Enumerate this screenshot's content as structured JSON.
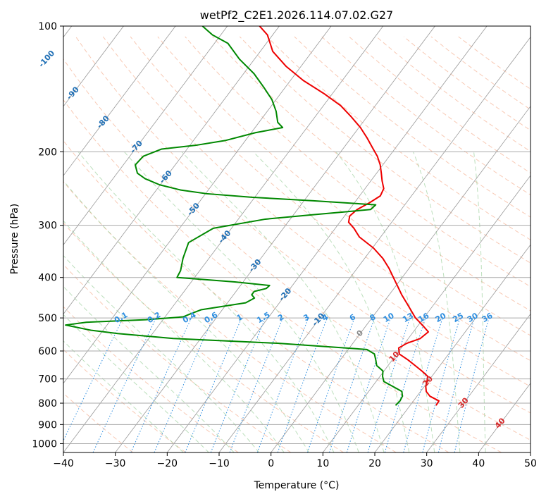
{
  "chart_data": {
    "type": "skew-t",
    "title": "wetPf2_C2E1.2026.114.07.02.G27",
    "xlabel": "Temperature (°C)",
    "ylabel": "Pressure (hPa)",
    "xlim": [
      -40,
      50
    ],
    "ylim": [
      1050,
      100
    ],
    "x_ticks": [
      -40,
      -30,
      -20,
      -10,
      0,
      10,
      20,
      30,
      40,
      50
    ],
    "x_tick_labels": [
      "−40",
      "−30",
      "−20",
      "−10",
      "0",
      "10",
      "20",
      "30",
      "40",
      "50"
    ],
    "y_ticks": [
      100,
      200,
      300,
      400,
      500,
      600,
      700,
      800,
      900,
      1000
    ],
    "y_tick_labels": [
      "100",
      "200",
      "300",
      "400",
      "500",
      "600",
      "700",
      "800",
      "900",
      "1000"
    ],
    "isotherm_labels": [
      {
        "text": "-100",
        "p": 120
      },
      {
        "text": "-90",
        "p": 145
      },
      {
        "text": "-80",
        "p": 170
      },
      {
        "text": "-70",
        "p": 195
      },
      {
        "text": "-60",
        "p": 230
      },
      {
        "text": "-50",
        "p": 275
      },
      {
        "text": "-40",
        "p": 320
      },
      {
        "text": "-30",
        "p": 375
      },
      {
        "text": "-20",
        "p": 440
      },
      {
        "text": "-10",
        "p": 505
      },
      {
        "text": "0",
        "p": 545
      },
      {
        "text": "10",
        "p": 620
      },
      {
        "text": "20",
        "p": 710
      },
      {
        "text": "30",
        "p": 800
      },
      {
        "text": "40",
        "p": 895
      }
    ],
    "mixing_ratio_labels": [
      "0.1",
      "0.2",
      "0.4",
      "0.6",
      "1",
      "1.5",
      "2",
      "3",
      "4",
      "6",
      "8",
      "10",
      "13",
      "16",
      "20",
      "25",
      "30",
      "36"
    ],
    "mixing_ratio_values": [
      0.1,
      0.2,
      0.4,
      0.6,
      1,
      1.5,
      2,
      3,
      4,
      6,
      8,
      10,
      13,
      16,
      20,
      25,
      30,
      36
    ],
    "series": [
      {
        "name": "Temperature",
        "color": "#ee0000",
        "pressure": [
          810,
          790,
          770,
          750,
          730,
          710,
          690,
          670,
          650,
          630,
          610,
          590,
          575,
          560,
          540,
          525,
          510,
          500,
          480,
          460,
          440,
          420,
          400,
          380,
          360,
          340,
          320,
          305,
          295,
          285,
          275,
          265,
          255,
          245,
          235,
          225,
          215,
          205,
          195,
          185,
          175,
          165,
          155,
          145,
          135,
          125,
          115,
          105,
          100
        ],
        "temp": [
          25.0,
          24.9,
          22.5,
          21.1,
          20.3,
          19.8,
          19.2,
          17.3,
          15.2,
          13.0,
          10.5,
          9.5,
          10.4,
          12.3,
          12.9,
          11.3,
          9.6,
          8.4,
          6.5,
          4.5,
          2.4,
          0.4,
          -1.7,
          -3.9,
          -6.5,
          -9.8,
          -14.1,
          -16.4,
          -18.3,
          -19.0,
          -18.5,
          -17.1,
          -16.0,
          -16.4,
          -17.8,
          -19.1,
          -20.5,
          -22.3,
          -24.6,
          -27.0,
          -29.7,
          -33.0,
          -36.7,
          -41.7,
          -47.5,
          -52.8,
          -57.6,
          -61.0,
          -63.8
        ]
      },
      {
        "name": "Dewpoint",
        "color": "#008800",
        "pressure": [
          810,
          790,
          770,
          750,
          730,
          710,
          690,
          670,
          650,
          630,
          610,
          595,
          575,
          560,
          545,
          535,
          525,
          520,
          512,
          505,
          497,
          490,
          478,
          460,
          448,
          440,
          432,
          425,
          418,
          410,
          400,
          385,
          360,
          330,
          305,
          290,
          283,
          275,
          268,
          262,
          257,
          252,
          247,
          240,
          232,
          225,
          215,
          205,
          197,
          193,
          188,
          180,
          175,
          170,
          160,
          150,
          140,
          130,
          120,
          110,
          105,
          100
        ],
        "temp": [
          17.2,
          17.4,
          17.2,
          16.4,
          14.0,
          11.5,
          10.5,
          9.8,
          7.8,
          6.8,
          5.7,
          3.6,
          -14.5,
          -35.3,
          -46.7,
          -52.4,
          -56.1,
          -58.0,
          -54.4,
          -43.3,
          -36.5,
          -35.7,
          -34.1,
          -26.5,
          -25.5,
          -26.5,
          -26.5,
          -24.6,
          -24.4,
          -31.6,
          -43.4,
          -43.7,
          -45.0,
          -46.2,
          -43.5,
          -34.8,
          -26.2,
          -15.9,
          -15.6,
          -28.2,
          -40.6,
          -49.8,
          -55.3,
          -60.1,
          -63.8,
          -66.1,
          -67.7,
          -67.4,
          -64.9,
          -58.9,
          -53.9,
          -49.2,
          -44.7,
          -46.4,
          -48.3,
          -50.8,
          -54.2,
          -58.0,
          -62.9,
          -67.4,
          -71.6,
          -74.8
        ]
      }
    ]
  }
}
